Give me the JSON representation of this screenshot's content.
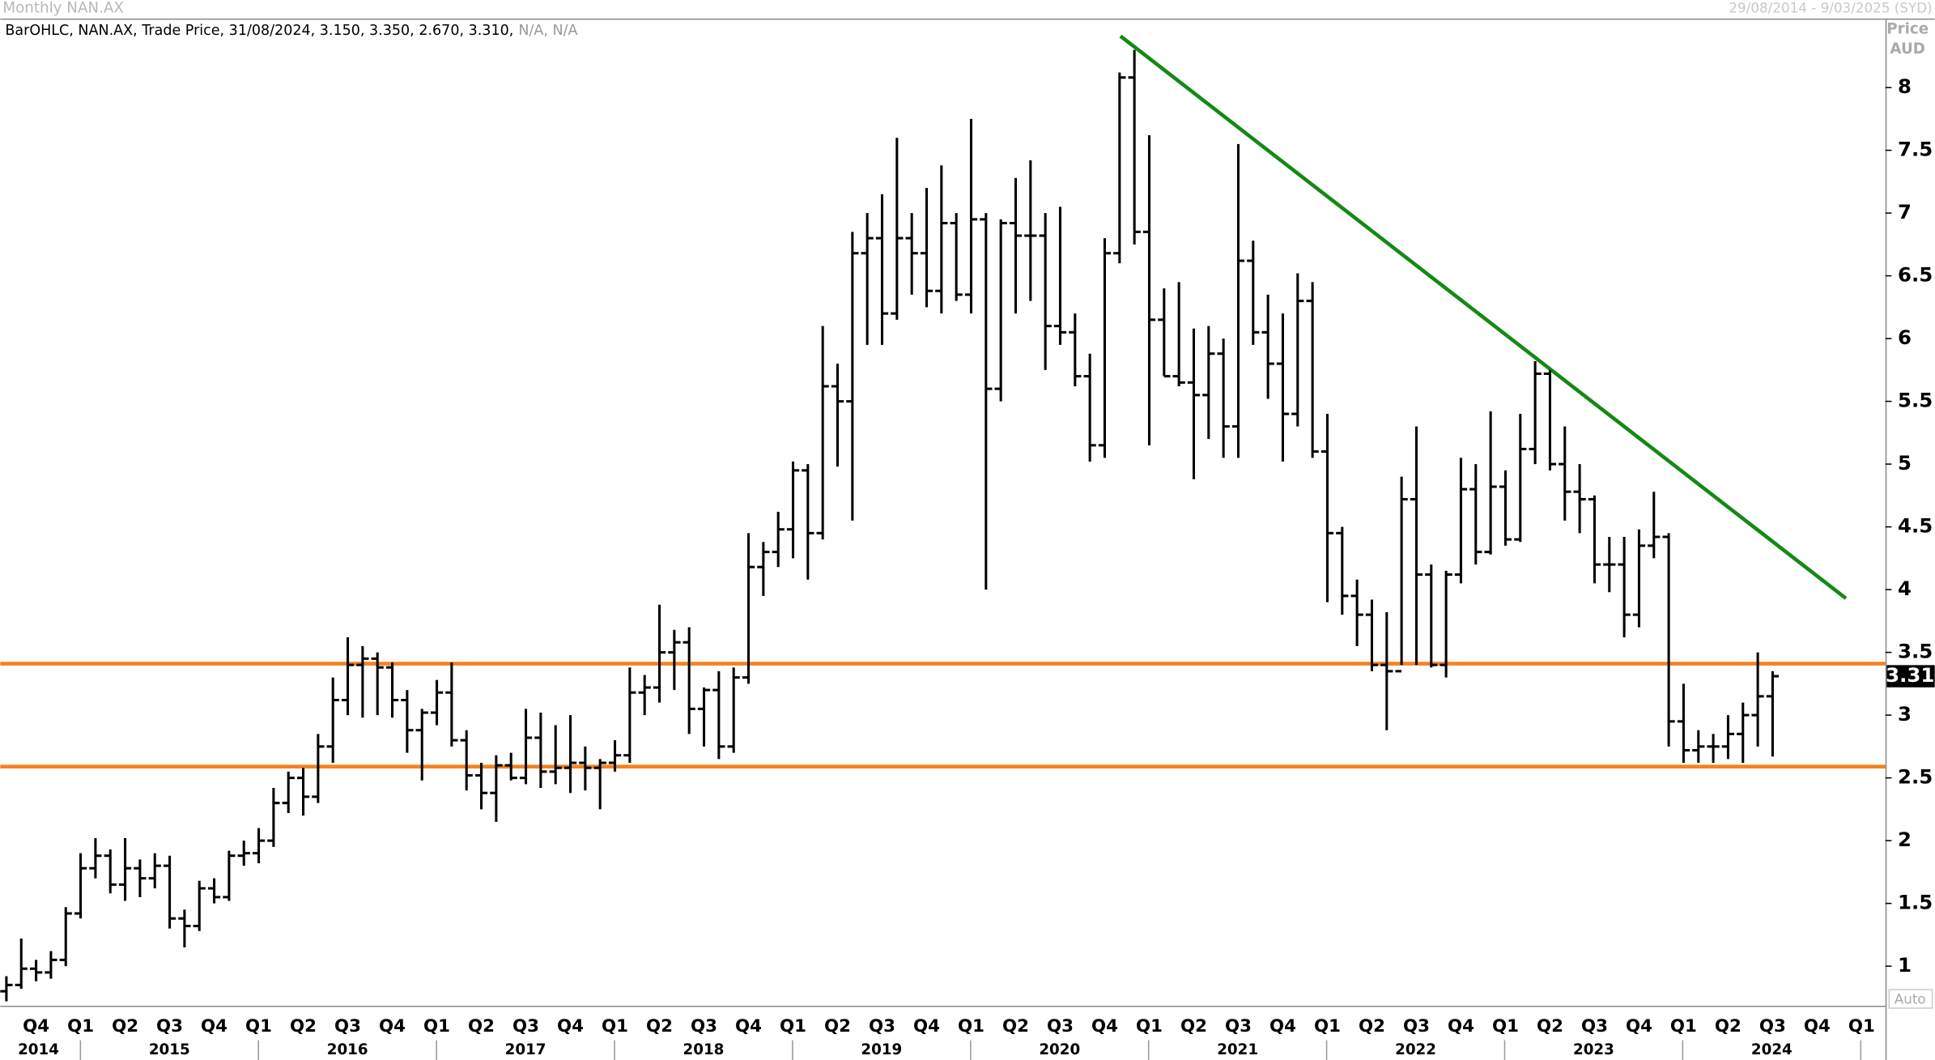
{
  "chart_data": {
    "type": "ohlc",
    "title": "Monthly NAN.AX",
    "date_range": "29/08/2014 - 9/03/2025 (SYD)",
    "legend_text": "BarOHLC, NAN.AX, Trade Price, 31/08/2024, 3.150, 3.350, 2.670, 3.310,",
    "legend_na": "N/A, N/A",
    "y_axis_label": "Price",
    "currency": "AUD",
    "scale_mode": "Auto",
    "color": "#000000",
    "ylim": [
      0.685,
      8.55
    ],
    "yticks": [
      1,
      1.5,
      2,
      2.5,
      3,
      3.5,
      4,
      4.5,
      5,
      5.5,
      6,
      6.5,
      7,
      7.5,
      8
    ],
    "quarter_labels": [
      "Q4",
      "Q1",
      "Q2",
      "Q3",
      "Q4",
      "Q1",
      "Q2",
      "Q3",
      "Q4",
      "Q1",
      "Q2",
      "Q3",
      "Q4",
      "Q1",
      "Q2",
      "Q3",
      "Q4",
      "Q1",
      "Q2",
      "Q3",
      "Q4",
      "Q1",
      "Q2",
      "Q3",
      "Q4",
      "Q1",
      "Q2",
      "Q3",
      "Q4",
      "Q1",
      "Q2",
      "Q3",
      "Q4",
      "Q1",
      "Q2",
      "Q3",
      "Q4",
      "Q1",
      "Q2",
      "Q3",
      "Q4",
      "Q1"
    ],
    "year_labels": [
      "2014",
      "2015",
      "2016",
      "2017",
      "2018",
      "2019",
      "2020",
      "2021",
      "2022",
      "2023",
      "2024"
    ],
    "hlines": [
      {
        "value": 3.41,
        "color": "#f5821f"
      },
      {
        "value": 2.59,
        "color": "#f5821f"
      }
    ],
    "trendline": {
      "start": 8.41,
      "end": 3.93,
      "color": "#138a13"
    },
    "ohlc": [
      [
        0.8,
        0.92,
        0.72,
        0.85
      ],
      [
        0.85,
        1.22,
        0.82,
        0.98
      ],
      [
        0.98,
        1.05,
        0.88,
        0.95
      ],
      [
        0.95,
        1.12,
        0.9,
        1.05
      ],
      [
        1.05,
        1.47,
        1.0,
        1.42
      ],
      [
        1.42,
        1.9,
        1.38,
        1.78
      ],
      [
        1.78,
        2.02,
        1.7,
        1.88
      ],
      [
        1.88,
        1.93,
        1.58,
        1.65
      ],
      [
        1.65,
        2.02,
        1.52,
        1.78
      ],
      [
        1.78,
        1.85,
        1.55,
        1.7
      ],
      [
        1.7,
        1.9,
        1.62,
        1.8
      ],
      [
        1.8,
        1.88,
        1.3,
        1.38
      ],
      [
        1.38,
        1.45,
        1.15,
        1.32
      ],
      [
        1.32,
        1.68,
        1.28,
        1.62
      ],
      [
        1.62,
        1.7,
        1.5,
        1.55
      ],
      [
        1.55,
        1.92,
        1.52,
        1.88
      ],
      [
        1.88,
        2.0,
        1.8,
        1.9
      ],
      [
        1.9,
        2.1,
        1.82,
        2.0
      ],
      [
        2.0,
        2.42,
        1.95,
        2.3
      ],
      [
        2.3,
        2.55,
        2.22,
        2.5
      ],
      [
        2.5,
        2.58,
        2.2,
        2.35
      ],
      [
        2.35,
        2.85,
        2.3,
        2.75
      ],
      [
        2.75,
        3.3,
        2.62,
        3.12
      ],
      [
        3.12,
        3.62,
        3.0,
        3.4
      ],
      [
        3.4,
        3.55,
        2.98,
        3.45
      ],
      [
        3.45,
        3.5,
        3.0,
        3.38
      ],
      [
        3.38,
        3.42,
        2.98,
        3.12
      ],
      [
        3.12,
        3.2,
        2.7,
        2.88
      ],
      [
        2.88,
        3.05,
        2.48,
        3.02
      ],
      [
        3.02,
        3.28,
        2.92,
        3.18
      ],
      [
        3.18,
        3.42,
        2.75,
        2.8
      ],
      [
        2.8,
        2.88,
        2.4,
        2.52
      ],
      [
        2.52,
        2.62,
        2.25,
        2.38
      ],
      [
        2.38,
        2.68,
        2.15,
        2.6
      ],
      [
        2.6,
        2.7,
        2.48,
        2.5
      ],
      [
        2.5,
        3.05,
        2.45,
        2.82
      ],
      [
        2.82,
        3.02,
        2.42,
        2.55
      ],
      [
        2.55,
        2.92,
        2.45,
        2.58
      ],
      [
        2.58,
        3.0,
        2.38,
        2.62
      ],
      [
        2.62,
        2.75,
        2.4,
        2.58
      ],
      [
        2.58,
        2.65,
        2.25,
        2.62
      ],
      [
        2.62,
        2.8,
        2.55,
        2.68
      ],
      [
        2.68,
        3.38,
        2.62,
        3.18
      ],
      [
        3.18,
        3.32,
        3.0,
        3.22
      ],
      [
        3.22,
        3.88,
        3.1,
        3.5
      ],
      [
        3.5,
        3.68,
        3.2,
        3.58
      ],
      [
        3.58,
        3.7,
        2.85,
        3.05
      ],
      [
        3.05,
        3.22,
        2.75,
        3.2
      ],
      [
        3.2,
        3.35,
        2.65,
        2.75
      ],
      [
        2.75,
        3.38,
        2.7,
        3.3
      ],
      [
        3.3,
        4.45,
        3.25,
        4.18
      ],
      [
        4.18,
        4.38,
        3.95,
        4.3
      ],
      [
        4.3,
        4.62,
        4.18,
        4.48
      ],
      [
        4.48,
        5.02,
        4.25,
        4.95
      ],
      [
        4.95,
        5.0,
        4.08,
        4.45
      ],
      [
        4.45,
        6.1,
        4.4,
        5.62
      ],
      [
        5.62,
        5.8,
        4.98,
        5.5
      ],
      [
        5.5,
        6.85,
        4.55,
        6.68
      ],
      [
        6.68,
        7.0,
        5.95,
        6.8
      ],
      [
        6.8,
        7.15,
        5.95,
        6.2
      ],
      [
        6.2,
        7.6,
        6.15,
        6.8
      ],
      [
        6.8,
        7.0,
        6.35,
        6.68
      ],
      [
        6.68,
        7.2,
        6.25,
        6.38
      ],
      [
        6.38,
        7.38,
        6.2,
        6.92
      ],
      [
        6.92,
        7.0,
        6.3,
        6.35
      ],
      [
        6.35,
        7.75,
        6.2,
        6.95
      ],
      [
        6.95,
        7.0,
        4.0,
        5.6
      ],
      [
        5.6,
        6.95,
        5.5,
        6.92
      ],
      [
        6.92,
        7.28,
        6.2,
        6.82
      ],
      [
        6.82,
        7.42,
        6.3,
        6.82
      ],
      [
        6.82,
        7.0,
        5.75,
        6.1
      ],
      [
        6.1,
        7.05,
        5.95,
        6.05
      ],
      [
        6.05,
        6.2,
        5.62,
        5.7
      ],
      [
        5.7,
        5.88,
        5.02,
        5.15
      ],
      [
        5.15,
        6.8,
        5.05,
        6.68
      ],
      [
        6.68,
        8.12,
        6.6,
        8.08
      ],
      [
        8.08,
        8.3,
        6.75,
        6.85
      ],
      [
        6.85,
        7.62,
        5.15,
        6.15
      ],
      [
        6.15,
        6.4,
        5.7,
        5.7
      ],
      [
        5.7,
        6.45,
        5.62,
        5.65
      ],
      [
        5.65,
        6.08,
        4.88,
        5.55
      ],
      [
        5.55,
        6.1,
        5.2,
        5.88
      ],
      [
        5.88,
        6.0,
        5.05,
        5.3
      ],
      [
        5.3,
        7.55,
        5.05,
        6.62
      ],
      [
        6.62,
        6.78,
        5.95,
        6.05
      ],
      [
        6.05,
        6.35,
        5.52,
        5.8
      ],
      [
        5.8,
        6.2,
        5.02,
        5.4
      ],
      [
        5.4,
        6.52,
        5.3,
        6.3
      ],
      [
        6.3,
        6.45,
        5.05,
        5.1
      ],
      [
        5.1,
        5.4,
        3.9,
        4.45
      ],
      [
        4.45,
        4.5,
        3.8,
        3.95
      ],
      [
        3.95,
        4.08,
        3.55,
        3.8
      ],
      [
        3.8,
        3.92,
        3.35,
        3.4
      ],
      [
        3.4,
        3.82,
        2.88,
        3.35
      ],
      [
        3.35,
        4.9,
        3.4,
        4.72
      ],
      [
        4.72,
        5.3,
        3.4,
        4.12
      ],
      [
        4.12,
        4.2,
        3.38,
        3.4
      ],
      [
        3.4,
        4.15,
        3.3,
        4.12
      ],
      [
        4.12,
        5.05,
        4.05,
        4.8
      ],
      [
        4.8,
        5.0,
        4.2,
        4.3
      ],
      [
        4.3,
        5.42,
        4.28,
        4.82
      ],
      [
        4.82,
        4.95,
        4.35,
        4.4
      ],
      [
        4.4,
        5.4,
        4.38,
        5.12
      ],
      [
        5.12,
        5.82,
        5.0,
        5.72
      ],
      [
        5.72,
        5.75,
        4.95,
        5.0
      ],
      [
        5.0,
        5.3,
        4.55,
        4.78
      ],
      [
        4.78,
        5.0,
        4.45,
        4.72
      ],
      [
        4.72,
        4.75,
        4.05,
        4.2
      ],
      [
        4.2,
        4.42,
        3.98,
        4.2
      ],
      [
        4.2,
        4.42,
        3.62,
        3.8
      ],
      [
        3.8,
        4.48,
        3.7,
        4.35
      ],
      [
        4.35,
        4.78,
        4.25,
        4.42
      ],
      [
        4.42,
        4.45,
        2.75,
        2.95
      ],
      [
        2.95,
        3.25,
        2.62,
        2.72
      ],
      [
        2.72,
        2.88,
        2.62,
        2.75
      ],
      [
        2.75,
        2.85,
        2.62,
        2.75
      ],
      [
        2.75,
        3.0,
        2.65,
        2.85
      ],
      [
        2.85,
        3.1,
        2.62,
        3.0
      ],
      [
        3.0,
        3.5,
        2.75,
        3.15
      ],
      [
        3.15,
        3.35,
        2.67,
        3.31
      ]
    ]
  }
}
